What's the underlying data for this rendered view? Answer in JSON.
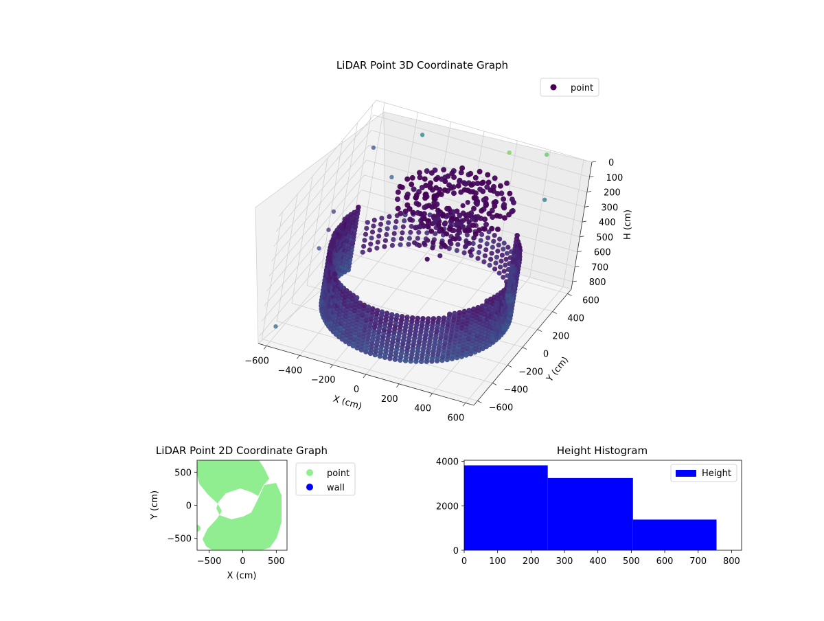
{
  "chart_data": [
    {
      "type": "scatter3d",
      "title": "LiDAR Point 3D Coordinate Graph",
      "xlabel": "X (cm)",
      "ylabel": "Y (cm)",
      "zlabel": "H (cm)",
      "xticks": [
        -600,
        -400,
        -200,
        0,
        200,
        400,
        600
      ],
      "yticks": [
        -600,
        -400,
        -200,
        0,
        200,
        400,
        600
      ],
      "zticks": [
        0,
        100,
        200,
        300,
        400,
        500,
        600,
        700,
        800
      ],
      "xlim": [
        -650,
        650
      ],
      "ylim": [
        -650,
        650
      ],
      "zlim": [
        0,
        850
      ],
      "z_inverted": true,
      "legend": {
        "entries": [
          "point"
        ],
        "placement": "top-right"
      },
      "colormap": "viridis",
      "series": [
        {
          "name": "point",
          "color": "#440154",
          "description_shape": "ring wall of radius ~500 cm plus central crown structure",
          "outliers": [
            {
              "x": -600,
              "y": -550,
              "h": 780
            },
            {
              "x": -580,
              "y": -100,
              "h": 520
            },
            {
              "x": -560,
              "y": -50,
              "h": 420
            },
            {
              "x": -600,
              "y": 100,
              "h": 400
            },
            {
              "x": -350,
              "y": 250,
              "h": 180
            },
            {
              "x": -500,
              "y": 300,
              "h": 60
            },
            {
              "x": -300,
              "y": 500,
              "h": 30
            },
            {
              "x": 200,
              "y": 550,
              "h": 20
            },
            {
              "x": 400,
              "y": 600,
              "h": 0
            },
            {
              "x": 500,
              "y": 400,
              "h": 150
            }
          ]
        }
      ]
    },
    {
      "type": "scatter",
      "title": "LiDAR Point 2D Coordinate Graph",
      "xlabel": "X (cm)",
      "ylabel": "Y (cm)",
      "xticks": [
        -500,
        0,
        500
      ],
      "yticks": [
        -500,
        0,
        500
      ],
      "xlim": [
        -680,
        660
      ],
      "ylim": [
        -680,
        680
      ],
      "legend": {
        "entries": [
          "point",
          "wall"
        ],
        "placement": "outside-right"
      },
      "series": [
        {
          "name": "point",
          "color": "#90ee90"
        },
        {
          "name": "wall",
          "color": "#0000ff"
        }
      ]
    },
    {
      "type": "bar",
      "title": "Height Histogram",
      "xticks": [
        0,
        100,
        200,
        300,
        400,
        500,
        600,
        700,
        800
      ],
      "yticks": [
        0,
        2000,
        4000
      ],
      "xlim": [
        0,
        830
      ],
      "ylim": [
        0,
        4050
      ],
      "legend": {
        "entries": [
          "Height"
        ],
        "placement": "top-right"
      },
      "series": [
        {
          "name": "Height",
          "color": "#0000ff",
          "bins": [
            {
              "start": 0,
              "end": 250,
              "count": 3820
            },
            {
              "start": 250,
              "end": 505,
              "count": 3250
            },
            {
              "start": 505,
              "end": 755,
              "count": 1380
            }
          ]
        }
      ]
    }
  ]
}
